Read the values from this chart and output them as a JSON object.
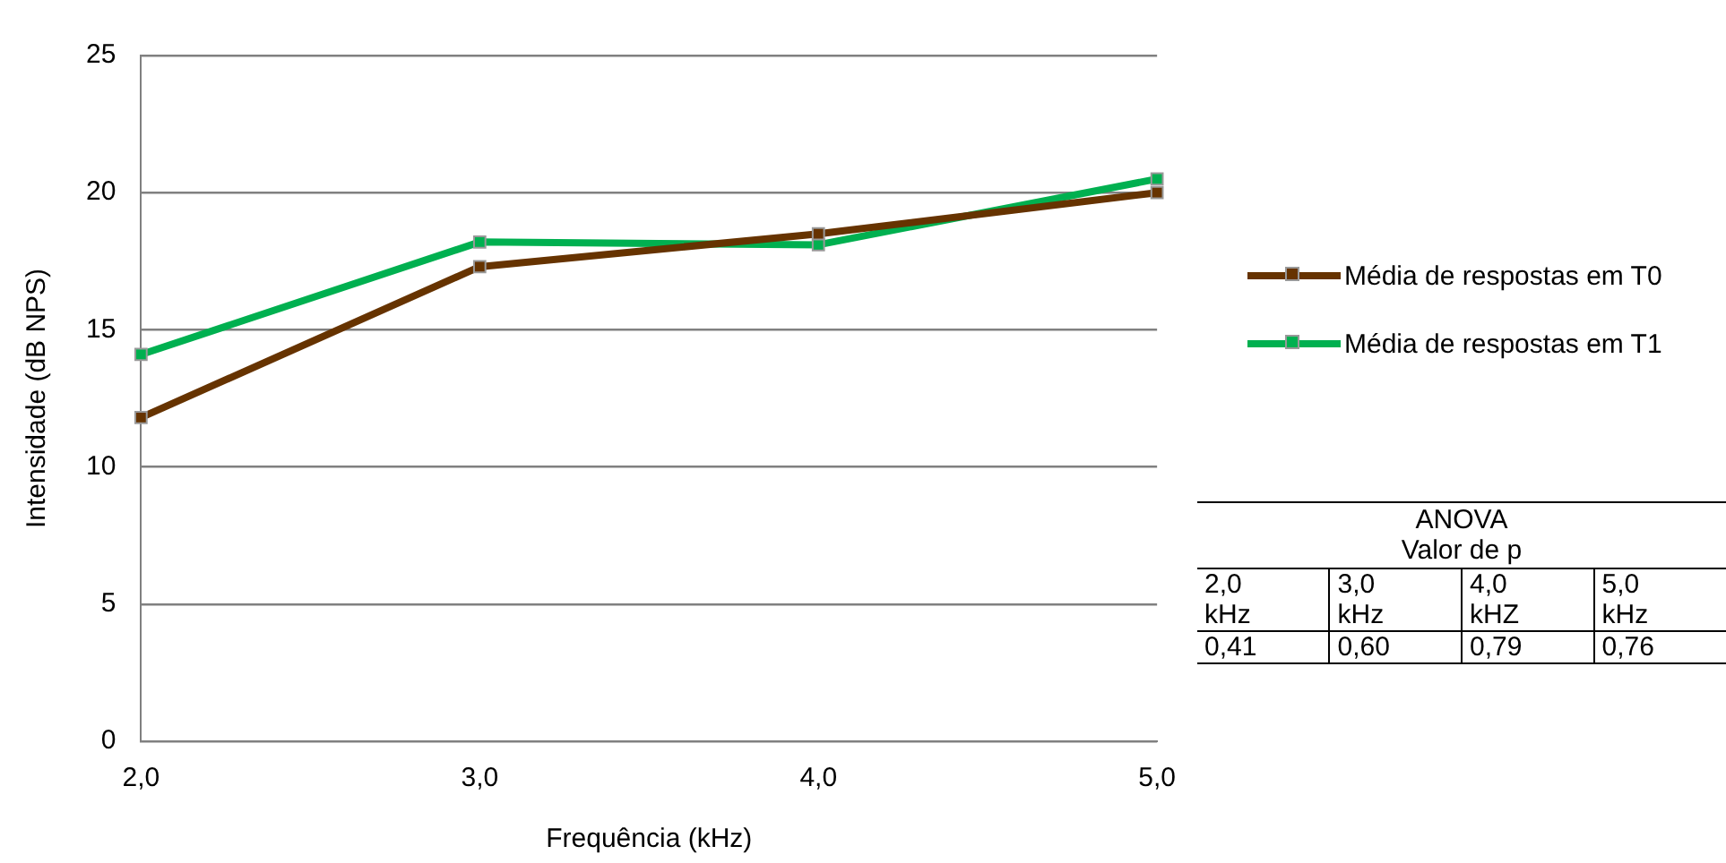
{
  "chart_data": {
    "type": "line",
    "xlabel": "Frequência (kHz)",
    "ylabel": "Intensidade (dB NPS)",
    "categories": [
      "2,0",
      "3,0",
      "4,0",
      "5,0"
    ],
    "series": [
      {
        "name": "Média de respostas em T0",
        "color": "#663300",
        "values": [
          11.8,
          17.3,
          18.5,
          20.0
        ]
      },
      {
        "name": "Média de respostas em T1",
        "color": "#00b050",
        "values": [
          14.1,
          18.2,
          18.1,
          20.5
        ]
      }
    ],
    "ylim": [
      0,
      25
    ],
    "yticks": [
      0,
      5,
      10,
      15,
      20,
      25
    ],
    "grid": "y",
    "legend": "right",
    "marker": "square",
    "line_style": "solid",
    "annotations": [
      "ANOVA",
      "Valor de p",
      "2,0 kHz",
      "3,0 kHz",
      "4,0 kHZ",
      "5,0 kHz",
      "0,41",
      "0,60",
      "0,79",
      "0,76"
    ]
  }
}
